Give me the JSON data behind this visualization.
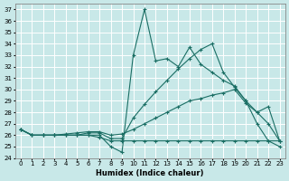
{
  "xlabel": "Humidex (Indice chaleur)",
  "bg_color": "#c8e8e8",
  "grid_color": "#b0d0d0",
  "line_color": "#1a6e64",
  "xlim": [
    -0.5,
    23.5
  ],
  "ylim": [
    24,
    37.5
  ],
  "yticks": [
    24,
    25,
    26,
    27,
    28,
    29,
    30,
    31,
    32,
    33,
    34,
    35,
    36,
    37
  ],
  "xticks": [
    0,
    1,
    2,
    3,
    4,
    5,
    6,
    7,
    8,
    9,
    10,
    11,
    12,
    13,
    14,
    15,
    16,
    17,
    18,
    19,
    20,
    21,
    22,
    23
  ],
  "series1": [
    26.5,
    26.0,
    26.0,
    26.0,
    26.0,
    26.0,
    26.0,
    26.0,
    25.0,
    24.5,
    33.0,
    37.0,
    32.5,
    32.7,
    32.0,
    33.7,
    32.2,
    31.5,
    30.8,
    30.3,
    29.0,
    27.0,
    25.5,
    25.0
  ],
  "series2": [
    26.5,
    26.0,
    26.0,
    26.0,
    26.0,
    26.0,
    26.2,
    26.2,
    25.7,
    25.7,
    27.5,
    28.7,
    29.8,
    30.8,
    31.8,
    32.7,
    33.5,
    34.0,
    31.5,
    30.2,
    29.0,
    28.0,
    27.0,
    25.5
  ],
  "series3": [
    26.5,
    26.0,
    26.0,
    26.0,
    26.1,
    26.2,
    26.3,
    26.3,
    26.0,
    26.1,
    26.5,
    27.0,
    27.5,
    28.0,
    28.5,
    29.0,
    29.2,
    29.5,
    29.7,
    30.0,
    28.8,
    28.0,
    28.5,
    25.5
  ],
  "series4": [
    26.5,
    26.0,
    26.0,
    26.0,
    26.0,
    26.0,
    26.0,
    25.8,
    25.5,
    25.5,
    25.5,
    25.5,
    25.5,
    25.5,
    25.5,
    25.5,
    25.5,
    25.5,
    25.5,
    25.5,
    25.5,
    25.5,
    25.5,
    25.5
  ]
}
